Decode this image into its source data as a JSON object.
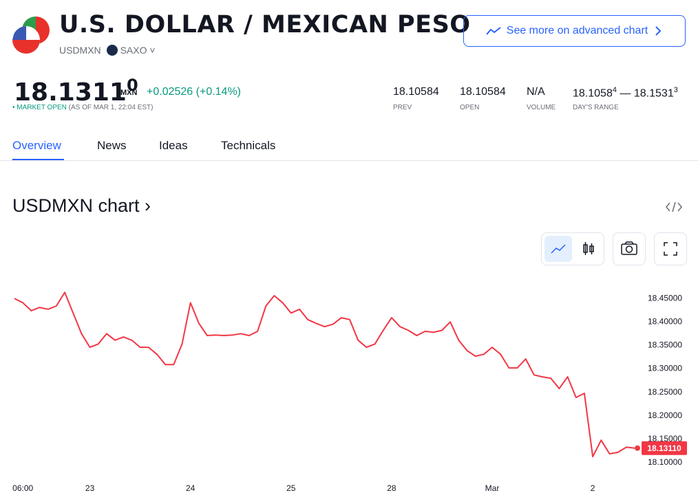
{
  "header": {
    "title": "U.S. DOLLAR / MEXICAN PESO",
    "symbol": "USDMXN",
    "exchange": "SAXO",
    "button": "See more on advanced chart",
    "price": "18.1311",
    "price_tail": "0",
    "currency": "MXN",
    "change": "+0.02526",
    "change_pct": "(+0.14%)",
    "status": "MARKET OPEN",
    "as_of": "(AS OF MAR 1, 22:04 EST)",
    "stats": [
      {
        "value": "18.10584",
        "label": "PREV"
      },
      {
        "value": "18.10584",
        "label": "OPEN"
      },
      {
        "value": "N/A",
        "label": "VOLUME"
      }
    ],
    "range": {
      "low": "18.1058",
      "low_tail": "4",
      "sep": "—",
      "high": "18.1531",
      "high_tail": "3",
      "label": "DAY'S RANGE"
    },
    "tabs": [
      "Overview",
      "News",
      "Ideas",
      "Technicals"
    ],
    "section": "USDMXN chart ›"
  },
  "chart_data": {
    "type": "line",
    "color": "#f23645",
    "grid": false,
    "categories": [
      null,
      "06:00",
      null,
      null,
      null,
      null,
      null,
      null,
      null,
      "23",
      null,
      null,
      null,
      null,
      null,
      null,
      null,
      null,
      null,
      null,
      null,
      "24",
      null,
      null,
      null,
      null,
      null,
      null,
      null,
      null,
      null,
      null,
      null,
      "25",
      null,
      null,
      null,
      null,
      null,
      null,
      null,
      null,
      null,
      null,
      null,
      "28",
      null,
      null,
      null,
      null,
      null,
      null,
      null,
      null,
      null,
      null,
      null,
      "Mar",
      null,
      null,
      null,
      null,
      null,
      null,
      null,
      null,
      null,
      null,
      null,
      "2",
      null,
      null,
      null,
      null,
      null
    ],
    "values": [
      18.45,
      18.441,
      18.424,
      18.431,
      18.427,
      18.434,
      18.463,
      18.419,
      18.375,
      18.346,
      18.353,
      18.375,
      18.361,
      18.368,
      18.361,
      18.346,
      18.346,
      18.331,
      18.309,
      18.309,
      18.353,
      18.441,
      18.397,
      18.371,
      18.372,
      18.371,
      18.372,
      18.375,
      18.371,
      18.38,
      18.434,
      18.456,
      18.441,
      18.419,
      18.427,
      18.405,
      18.397,
      18.39,
      18.395,
      18.409,
      18.405,
      18.361,
      18.346,
      18.353,
      18.382,
      18.409,
      18.39,
      18.382,
      18.371,
      18.38,
      18.378,
      18.382,
      18.4,
      18.361,
      18.339,
      18.327,
      18.331,
      18.346,
      18.331,
      18.302,
      18.302,
      18.321,
      18.287,
      18.283,
      18.28,
      18.258,
      18.283,
      18.239,
      18.248,
      18.113,
      18.148,
      18.119,
      18.122,
      18.133,
      18.1311
    ],
    "value_labels": [
      null,
      null,
      null,
      null,
      null,
      null,
      null,
      null,
      null,
      null,
      null,
      null,
      null,
      null,
      null,
      null,
      null,
      null,
      null,
      null,
      null,
      null,
      null,
      null,
      null,
      null,
      null,
      null,
      null,
      null,
      null,
      null,
      null,
      null,
      null,
      null,
      null,
      null,
      null,
      null,
      null,
      null,
      null,
      null,
      null,
      null,
      null,
      null,
      null,
      null,
      null,
      null,
      null,
      null,
      null,
      null,
      null,
      null,
      null,
      null,
      null,
      null,
      null,
      null,
      null,
      null,
      null,
      null,
      null,
      null,
      null,
      null,
      null,
      null,
      "18.13110"
    ],
    "ylim": [
      18.075,
      18.5
    ],
    "yticks": [
      {
        "value": 18.45,
        "label": "18.45000"
      },
      {
        "value": 18.4,
        "label": "18.40000"
      },
      {
        "value": 18.35,
        "label": "18.35000"
      },
      {
        "value": 18.3,
        "label": "18.30000"
      },
      {
        "value": 18.25,
        "label": "18.25000"
      },
      {
        "value": 18.2,
        "label": "18.20000"
      },
      {
        "value": 18.15,
        "label": "18.15000"
      },
      {
        "value": 18.1,
        "label": "18.10000"
      }
    ]
  }
}
